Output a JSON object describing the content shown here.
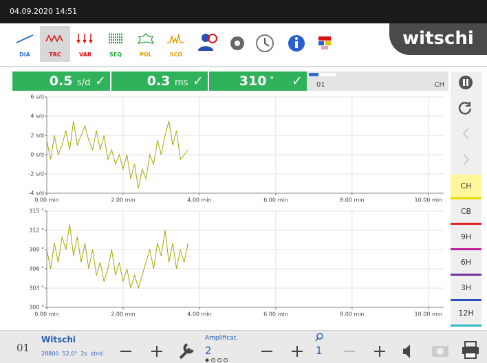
{
  "status_bar": {
    "datetime": "04.09.2020 14:51"
  },
  "toolbar": {
    "tabs": [
      "DIA",
      "TRC",
      "VAR",
      "SEQ",
      "POL",
      "SCO"
    ],
    "logo": "witschi"
  },
  "readout": {
    "rate": 0.5,
    "rate_unit": "s/d",
    "beat_error": 0.3,
    "beat_error_unit": "ms",
    "amplitude": 310,
    "amplitude_unit": "°",
    "check": "✓",
    "channel": "01",
    "position": "CH"
  },
  "positions": [
    "CH",
    "CB",
    "9H",
    "6H",
    "3H",
    "12H"
  ],
  "footer": {
    "channel": "01",
    "name": "Witschi",
    "settings": "28800  52.0°  2s  stnd",
    "amplification_label": "Amplificat.",
    "amplification": "2",
    "sensitivity": "1"
  },
  "chart_data": [
    {
      "type": "line",
      "color": "#a8a600",
      "grid": true,
      "xlim": [
        0,
        10.4
      ],
      "xticks": [
        {
          "value": 0,
          "label": "0.00 min"
        },
        {
          "value": 2,
          "label": "2.00 min"
        },
        {
          "value": 4,
          "label": "4.00 min"
        },
        {
          "value": 6,
          "label": "6.00 min"
        },
        {
          "value": 8,
          "label": "8.00 min"
        },
        {
          "value": 10,
          "label": "10.00 min"
        }
      ],
      "ylim": [
        -4,
        6
      ],
      "yticks": [
        {
          "value": -4,
          "label": "-4 s/d"
        },
        {
          "value": -2,
          "label": "-2 s/d"
        },
        {
          "value": 0,
          "label": "0 s/d"
        },
        {
          "value": 2,
          "label": "2 s/d"
        },
        {
          "value": 4,
          "label": "4 s/d"
        },
        {
          "value": 6,
          "label": "6 s/d"
        }
      ],
      "x": [
        0,
        0.1,
        0.2,
        0.3,
        0.4,
        0.5,
        0.6,
        0.7,
        0.8,
        0.9,
        1.0,
        1.1,
        1.2,
        1.3,
        1.4,
        1.5,
        1.6,
        1.7,
        1.8,
        1.9,
        2.0,
        2.1,
        2.2,
        2.3,
        2.4,
        2.5,
        2.6,
        2.7,
        2.8,
        2.9,
        3.0,
        3.1,
        3.2,
        3.3,
        3.4,
        3.5,
        3.6,
        3.7
      ],
      "values": [
        1.5,
        -0.5,
        2,
        0,
        1,
        2.5,
        0.5,
        3.5,
        1,
        2,
        3,
        1.5,
        0.5,
        2.5,
        0.5,
        2,
        -0.5,
        0.5,
        -1,
        0,
        -1.5,
        0,
        -2.5,
        -1,
        -3.5,
        -1.5,
        -2.5,
        0,
        -1,
        1.5,
        0,
        2,
        3.5,
        1,
        2.5,
        -0.5,
        0,
        0.5
      ]
    },
    {
      "type": "line",
      "color": "#a8a600",
      "grid": true,
      "xlim": [
        0,
        10.4
      ],
      "xticks": [
        {
          "value": 0,
          "label": "0.00 min"
        },
        {
          "value": 2,
          "label": "2.00 min"
        },
        {
          "value": 4,
          "label": "4.00 min"
        },
        {
          "value": 6,
          "label": "6.00 min"
        },
        {
          "value": 8,
          "label": "8.00 min"
        },
        {
          "value": 10,
          "label": "10.00 min"
        }
      ],
      "ylim": [
        300,
        315
      ],
      "yticks": [
        {
          "value": 300,
          "label": "300 °"
        },
        {
          "value": 303,
          "label": "303 °"
        },
        {
          "value": 306,
          "label": "306 °"
        },
        {
          "value": 309,
          "label": "309 °"
        },
        {
          "value": 312,
          "label": "312 °"
        },
        {
          "value": 315,
          "label": "315 °"
        }
      ],
      "x": [
        0,
        0.1,
        0.2,
        0.3,
        0.4,
        0.5,
        0.6,
        0.7,
        0.8,
        0.9,
        1.0,
        1.1,
        1.2,
        1.3,
        1.4,
        1.5,
        1.6,
        1.7,
        1.8,
        1.9,
        2.0,
        2.1,
        2.2,
        2.3,
        2.4,
        2.5,
        2.6,
        2.7,
        2.8,
        2.9,
        3.0,
        3.1,
        3.2,
        3.3,
        3.4,
        3.5,
        3.6,
        3.7
      ],
      "values": [
        309,
        306,
        310,
        307,
        311,
        309,
        313,
        308,
        311,
        307,
        310,
        306,
        309,
        305,
        307,
        304,
        306,
        309,
        305,
        307,
        304,
        306,
        303,
        305,
        303,
        305,
        307,
        309,
        306,
        310,
        308,
        312,
        307,
        310,
        306,
        309,
        307,
        310
      ]
    }
  ]
}
